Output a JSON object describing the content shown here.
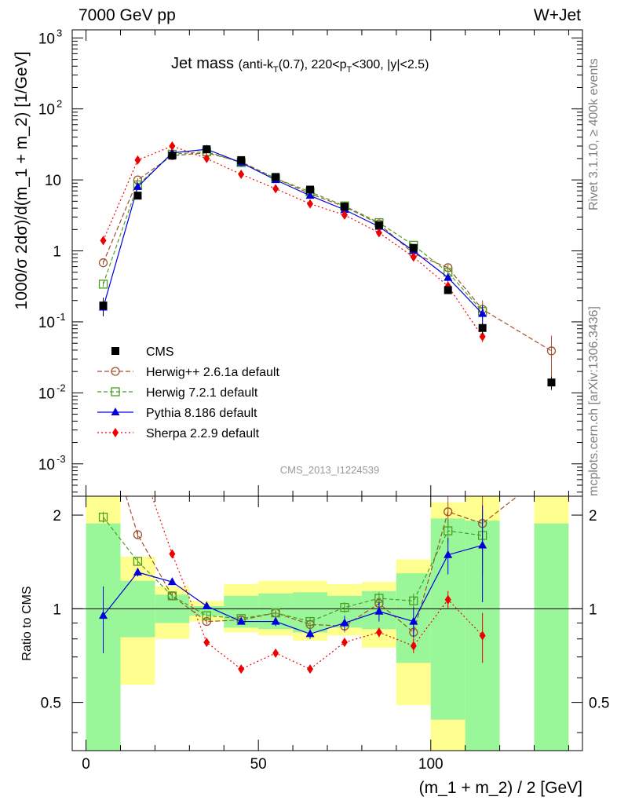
{
  "header": {
    "left": "7000 GeV pp",
    "right": "W+Jet"
  },
  "side_labels": {
    "rivet": "Rivet 3.1.10, ≥ 400k events",
    "mcplots": "mcplots.cern.ch [arXiv:1306.3436]"
  },
  "watermark": "CMS_2013_I1224539",
  "chart_data": {
    "type": "scatter",
    "title_main": "Jet mass",
    "title_detail": "(anti-kₜ(0.7), 220<pₜ<300, |y|<2.5)",
    "title_detail_parts": [
      "(anti-k",
      "T",
      "(0.7), 220<p",
      "T",
      "<300, |y|<2.5)"
    ],
    "ylabel": "1000/σ 2dσ)/d(m_1 + m_2) [1/GeV]",
    "ylabel_parts": [
      "1000/",
      "σ",
      " 2d",
      "σ",
      ")/d(m_1 + m_2) [1/GeV]"
    ],
    "xlabel": "(m_1 + m_2) / 2 [GeV]",
    "ratio_ylabel": "Ratio to CMS",
    "xlim": [
      -4,
      144
    ],
    "ylim": [
      0.00035,
      1300
    ],
    "yscale": "log",
    "ratio_ylim": [
      0.35,
      2.3
    ],
    "ratio_yscale": "log",
    "xticks": [
      0,
      50,
      100
    ],
    "main_yticks": [
      {
        "v": 0.001,
        "base": "10",
        "exp": "-3"
      },
      {
        "v": 0.01,
        "base": "10",
        "exp": "-2"
      },
      {
        "v": 0.1,
        "base": "10",
        "exp": "-1"
      },
      {
        "v": 1,
        "base": "1",
        "exp": ""
      },
      {
        "v": 10,
        "base": "10",
        "exp": ""
      },
      {
        "v": 100,
        "base": "10",
        "exp": "2"
      },
      {
        "v": 1000,
        "base": "10",
        "exp": "3"
      }
    ],
    "ratio_yticks": [
      {
        "v": 0.5,
        "label": "0.5"
      },
      {
        "v": 1,
        "label": "1"
      },
      {
        "v": 2,
        "label": "2"
      }
    ],
    "x": [
      5,
      15,
      25,
      35,
      45,
      55,
      65,
      75,
      85,
      95,
      105,
      115,
      135
    ],
    "bins": [
      [
        0,
        10
      ],
      [
        10,
        20
      ],
      [
        20,
        30
      ],
      [
        30,
        40
      ],
      [
        40,
        50
      ],
      [
        50,
        60
      ],
      [
        60,
        70
      ],
      [
        70,
        80
      ],
      [
        80,
        90
      ],
      [
        90,
        100
      ],
      [
        100,
        110
      ],
      [
        110,
        120
      ],
      [
        130,
        140
      ]
    ],
    "data": {
      "name": "CMS",
      "values": [
        0.17,
        6.0,
        22,
        27,
        19,
        11,
        7.3,
        4.2,
        2.3,
        1.1,
        0.28,
        0.082,
        0.014
      ],
      "errors": [
        0.05,
        0.6,
        1.5,
        1.5,
        1.2,
        0.7,
        0.5,
        0.3,
        0.18,
        0.09,
        0.03,
        0.015,
        0.003
      ]
    },
    "ratio_bands": {
      "inner": [
        [
          0.35,
          1.88
        ],
        [
          0.81,
          1.23
        ],
        [
          0.9,
          1.11
        ],
        [
          0.95,
          1.02
        ],
        [
          0.87,
          1.1
        ],
        [
          0.86,
          1.12
        ],
        [
          0.84,
          1.13
        ],
        [
          0.87,
          1.1
        ],
        [
          0.86,
          1.14
        ],
        [
          0.67,
          1.3
        ],
        [
          0.44,
          1.95
        ],
        [
          0.35,
          1.92
        ],
        [
          0.35,
          1.88
        ]
      ],
      "outer": [
        [
          0.35,
          2.3
        ],
        [
          0.57,
          1.47
        ],
        [
          0.8,
          1.18
        ],
        [
          0.91,
          1.06
        ],
        [
          0.84,
          1.2
        ],
        [
          0.82,
          1.23
        ],
        [
          0.79,
          1.23
        ],
        [
          0.82,
          1.2
        ],
        [
          0.75,
          1.22
        ],
        [
          0.49,
          1.44
        ],
        [
          0.35,
          2.2
        ],
        [
          0.35,
          2.3
        ],
        [
          0.35,
          2.3
        ]
      ]
    },
    "series": [
      {
        "name": "Herwig++ 2.6.1a default",
        "color": "#a0522d",
        "marker": "circle-open",
        "dash": "6,3",
        "x": [
          5,
          15,
          25,
          35,
          45,
          55,
          65,
          75,
          85,
          95,
          105,
          115,
          135
        ],
        "values": [
          0.68,
          10,
          22,
          24,
          18,
          10.5,
          6.4,
          4.2,
          2.4,
          0.92,
          0.58,
          0.15,
          0.039
        ],
        "ratio": [
          4.0,
          1.73,
          1.1,
          0.91,
          0.92,
          0.97,
          0.89,
          0.88,
          1.04,
          0.84,
          2.05,
          1.88,
          2.8
        ],
        "errors": [
          0.04,
          0.5,
          1,
          1,
          1,
          0.5,
          0.3,
          0.2,
          0.12,
          0.06,
          0.06,
          0.05,
          0.025
        ],
        "ratio_errors": [
          0.05,
          0.05,
          0.03,
          0.02,
          0.02,
          0.02,
          0.03,
          0.04,
          0.05,
          0.07,
          0.25,
          0.6,
          0
        ]
      },
      {
        "name": "Herwig 7.2.1 default",
        "color": "#4a9e24",
        "marker": "square-open",
        "dash": "5,3",
        "x": [
          5,
          15,
          25,
          35,
          45,
          55,
          65,
          75,
          85,
          95,
          105,
          115
        ],
        "values": [
          0.34,
          8.5,
          23,
          25,
          17.5,
          10.5,
          6.8,
          4.3,
          2.5,
          1.2,
          0.5,
          0.14
        ],
        "ratio": [
          1.97,
          1.42,
          1.1,
          0.95,
          0.93,
          0.97,
          0.91,
          1.01,
          1.08,
          1.06,
          1.78,
          1.72
        ],
        "errors": [
          0.03,
          0.5,
          1,
          1,
          1,
          0.5,
          0.3,
          0.2,
          0.12,
          0.06,
          0.05,
          0.04
        ],
        "ratio_errors": [
          0.08,
          0.04,
          0.03,
          0.02,
          0.02,
          0.02,
          0.03,
          0.04,
          0.05,
          0.06,
          0.15,
          0.35
        ]
      },
      {
        "name": "Pythia 8.186 default",
        "color": "#0000dd",
        "marker": "triangle",
        "dash": "",
        "x": [
          5,
          15,
          25,
          35,
          45,
          55,
          65,
          75,
          85,
          95,
          105,
          115
        ],
        "values": [
          0.16,
          8,
          24,
          27,
          17.5,
          10,
          6.0,
          3.8,
          2.2,
          1.0,
          0.42,
          0.13
        ],
        "ratio": [
          0.95,
          1.31,
          1.22,
          1.02,
          0.91,
          0.91,
          0.83,
          0.9,
          0.98,
          0.91,
          1.49,
          1.6
        ],
        "errors": [
          0.04,
          0.5,
          1,
          1,
          1,
          0.5,
          0.3,
          0.2,
          0.12,
          0.06,
          0.05,
          0.04
        ],
        "ratio_errors": [
          0.23,
          0.04,
          0.03,
          0.02,
          0.02,
          0.03,
          0.03,
          0.05,
          0.07,
          0.1,
          0.2,
          0.55
        ]
      },
      {
        "name": "Sherpa 2.2.9 default",
        "color": "#ee0000",
        "marker": "diamond",
        "dash": "2,3",
        "x": [
          5,
          15,
          25,
          35,
          45,
          55,
          65,
          75,
          85,
          95,
          105,
          115
        ],
        "values": [
          1.4,
          19,
          30,
          20,
          12,
          7.5,
          4.6,
          3.2,
          1.8,
          0.82,
          0.32,
          0.062
        ],
        "ratio": [
          8.0,
          3.1,
          1.5,
          0.78,
          0.64,
          0.72,
          0.64,
          0.78,
          0.84,
          0.76,
          1.07,
          0.82
        ],
        "errors": [
          0.1,
          1,
          1,
          1,
          0.6,
          0.4,
          0.2,
          0.15,
          0.1,
          0.05,
          0.03,
          0.01
        ],
        "ratio_errors": [
          0,
          0,
          0.03,
          0.02,
          0.02,
          0.02,
          0.02,
          0.02,
          0.03,
          0.04,
          0.07,
          0.15
        ]
      }
    ],
    "legend": [
      "CMS",
      "Herwig++ 2.6.1a default",
      "Herwig 7.2.1 default",
      "Pythia 8.186 default",
      "Sherpa 2.2.9 default"
    ]
  }
}
